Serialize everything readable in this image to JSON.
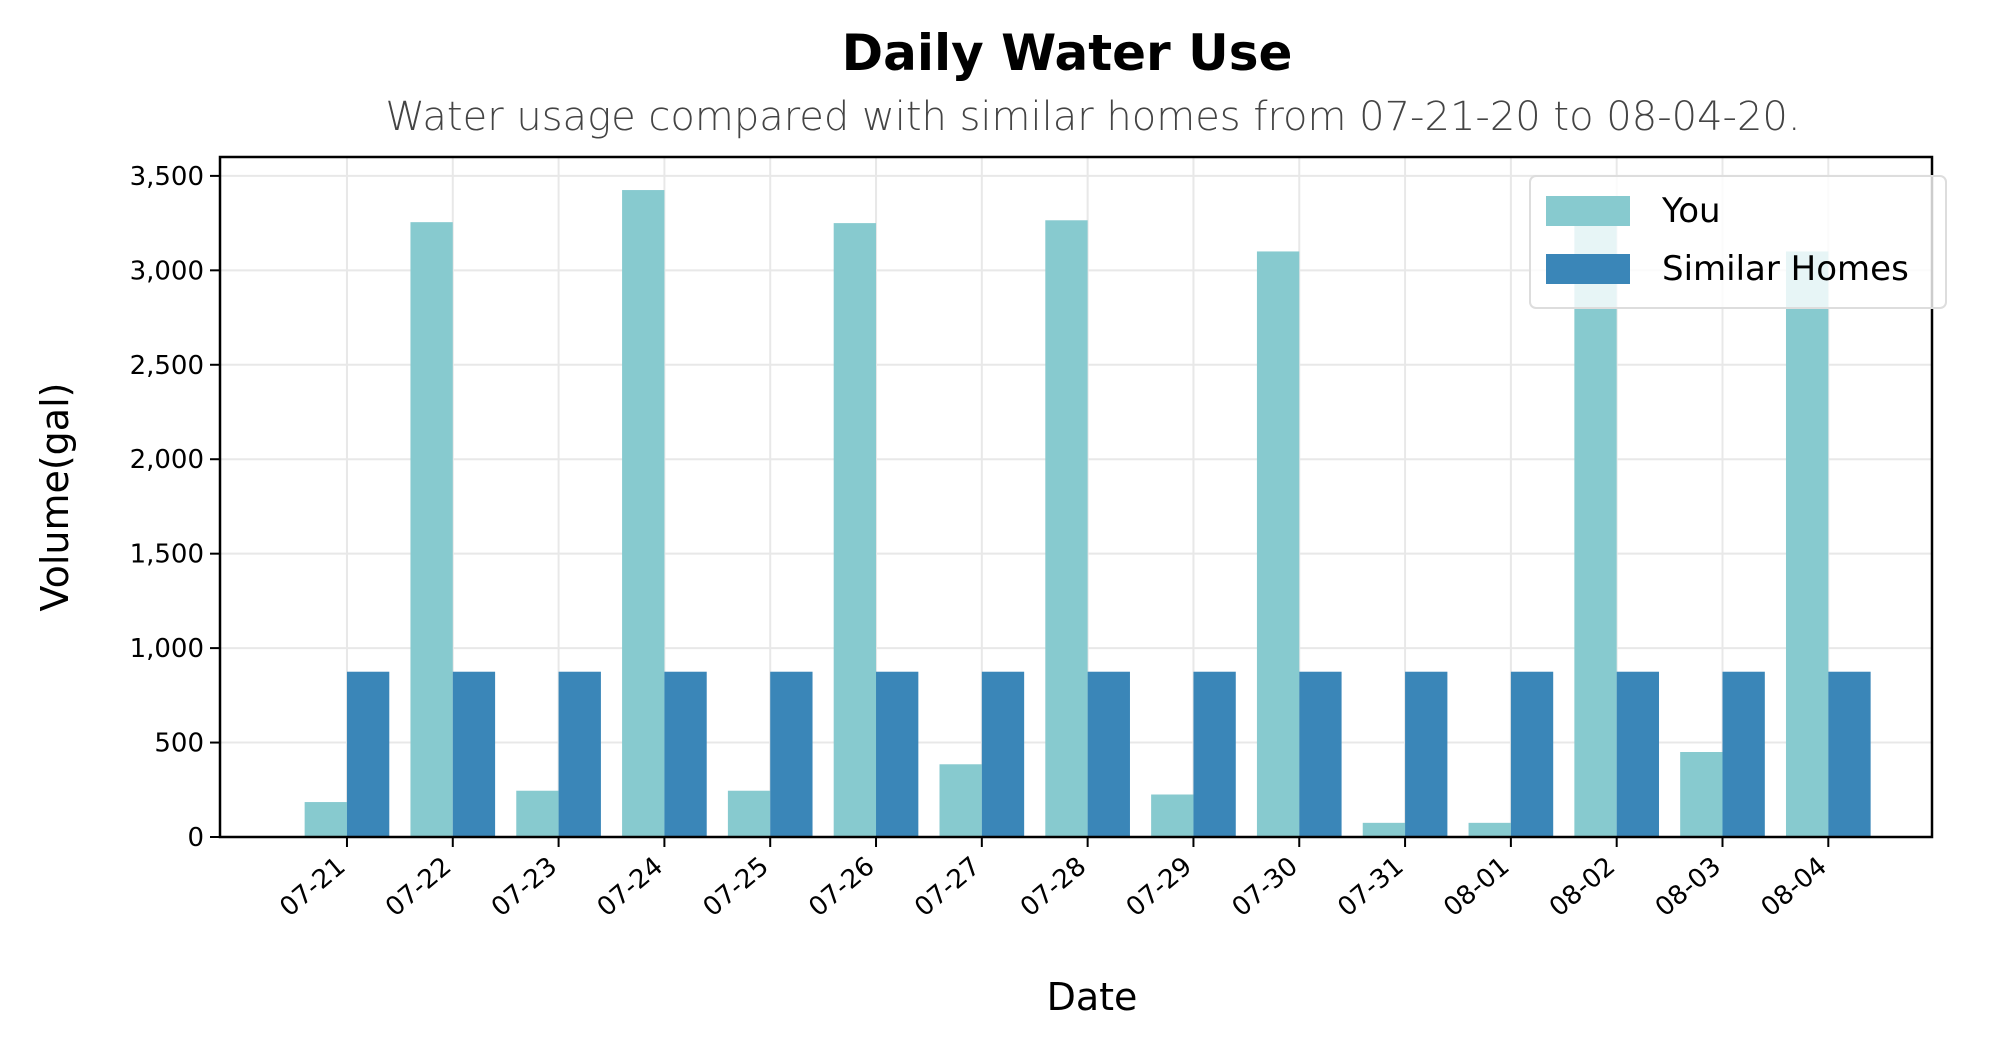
{
  "chart_data": {
    "type": "bar",
    "title": "Daily Water Use",
    "subtitle": "Water usage compared with similar homes from 07-21-20 to 08-04-20.",
    "xlabel": "Date",
    "ylabel": "Volume(gal)",
    "categories": [
      "07-21",
      "07-22",
      "07-23",
      "07-24",
      "07-25",
      "07-26",
      "07-27",
      "07-28",
      "07-29",
      "07-30",
      "07-31",
      "08-01",
      "08-02",
      "08-03",
      "08-04"
    ],
    "series": [
      {
        "name": "You",
        "color": "#87cacf",
        "values": [
          185,
          3255,
          245,
          3425,
          245,
          3250,
          385,
          3265,
          225,
          3100,
          75,
          75,
          3265,
          450,
          3100
        ]
      },
      {
        "name": "Similar Homes",
        "color": "#3a86b8",
        "values": [
          875,
          875,
          875,
          875,
          875,
          875,
          875,
          875,
          875,
          875,
          875,
          875,
          875,
          875,
          875
        ]
      }
    ],
    "ylim": [
      0,
      3600
    ],
    "yticks": [
      0,
      500,
      1000,
      1500,
      2000,
      2500,
      3000,
      3500
    ],
    "ytick_labels": [
      "0",
      "500",
      "1,000",
      "1,500",
      "2,000",
      "2,500",
      "3,000",
      "3,500"
    ],
    "grid": true,
    "legend_position": "top-right"
  }
}
